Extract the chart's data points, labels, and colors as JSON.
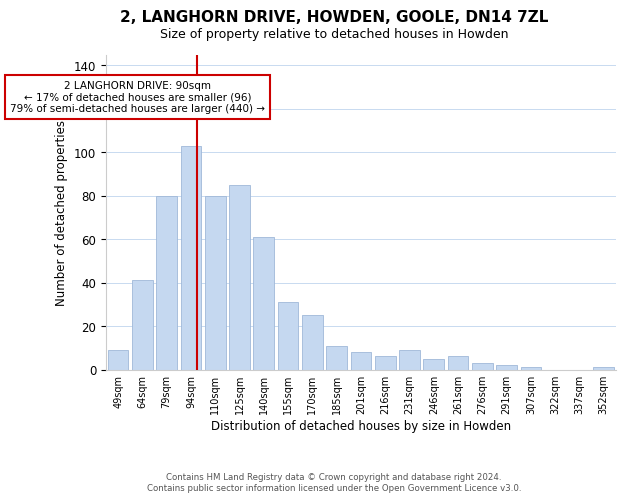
{
  "title": "2, LANGHORN DRIVE, HOWDEN, GOOLE, DN14 7ZL",
  "subtitle": "Size of property relative to detached houses in Howden",
  "xlabel": "Distribution of detached houses by size in Howden",
  "ylabel": "Number of detached properties",
  "bar_labels": [
    "49sqm",
    "64sqm",
    "79sqm",
    "94sqm",
    "110sqm",
    "125sqm",
    "140sqm",
    "155sqm",
    "170sqm",
    "185sqm",
    "201sqm",
    "216sqm",
    "231sqm",
    "246sqm",
    "261sqm",
    "276sqm",
    "291sqm",
    "307sqm",
    "322sqm",
    "337sqm",
    "352sqm"
  ],
  "bar_values": [
    9,
    41,
    80,
    103,
    80,
    85,
    61,
    31,
    25,
    11,
    8,
    6,
    9,
    5,
    6,
    3,
    2,
    1,
    0,
    0,
    1
  ],
  "bar_color": "#c5d8f0",
  "bar_edge_color": "#a0b8d8",
  "vline_color": "#cc0000",
  "annotation_title": "2 LANGHORN DRIVE: 90sqm",
  "annotation_line1": "← 17% of detached houses are smaller (96)",
  "annotation_line2": "79% of semi-detached houses are larger (440) →",
  "annotation_box_color": "#ffffff",
  "annotation_box_edge": "#cc0000",
  "ylim": [
    0,
    145
  ],
  "yticks": [
    0,
    20,
    40,
    60,
    80,
    100,
    120,
    140
  ],
  "footer_line1": "Contains HM Land Registry data © Crown copyright and database right 2024.",
  "footer_line2": "Contains public sector information licensed under the Open Government Licence v3.0.",
  "bg_color": "#ffffff",
  "grid_color": "#c8daf0",
  "title_fontsize": 11,
  "subtitle_fontsize": 9
}
